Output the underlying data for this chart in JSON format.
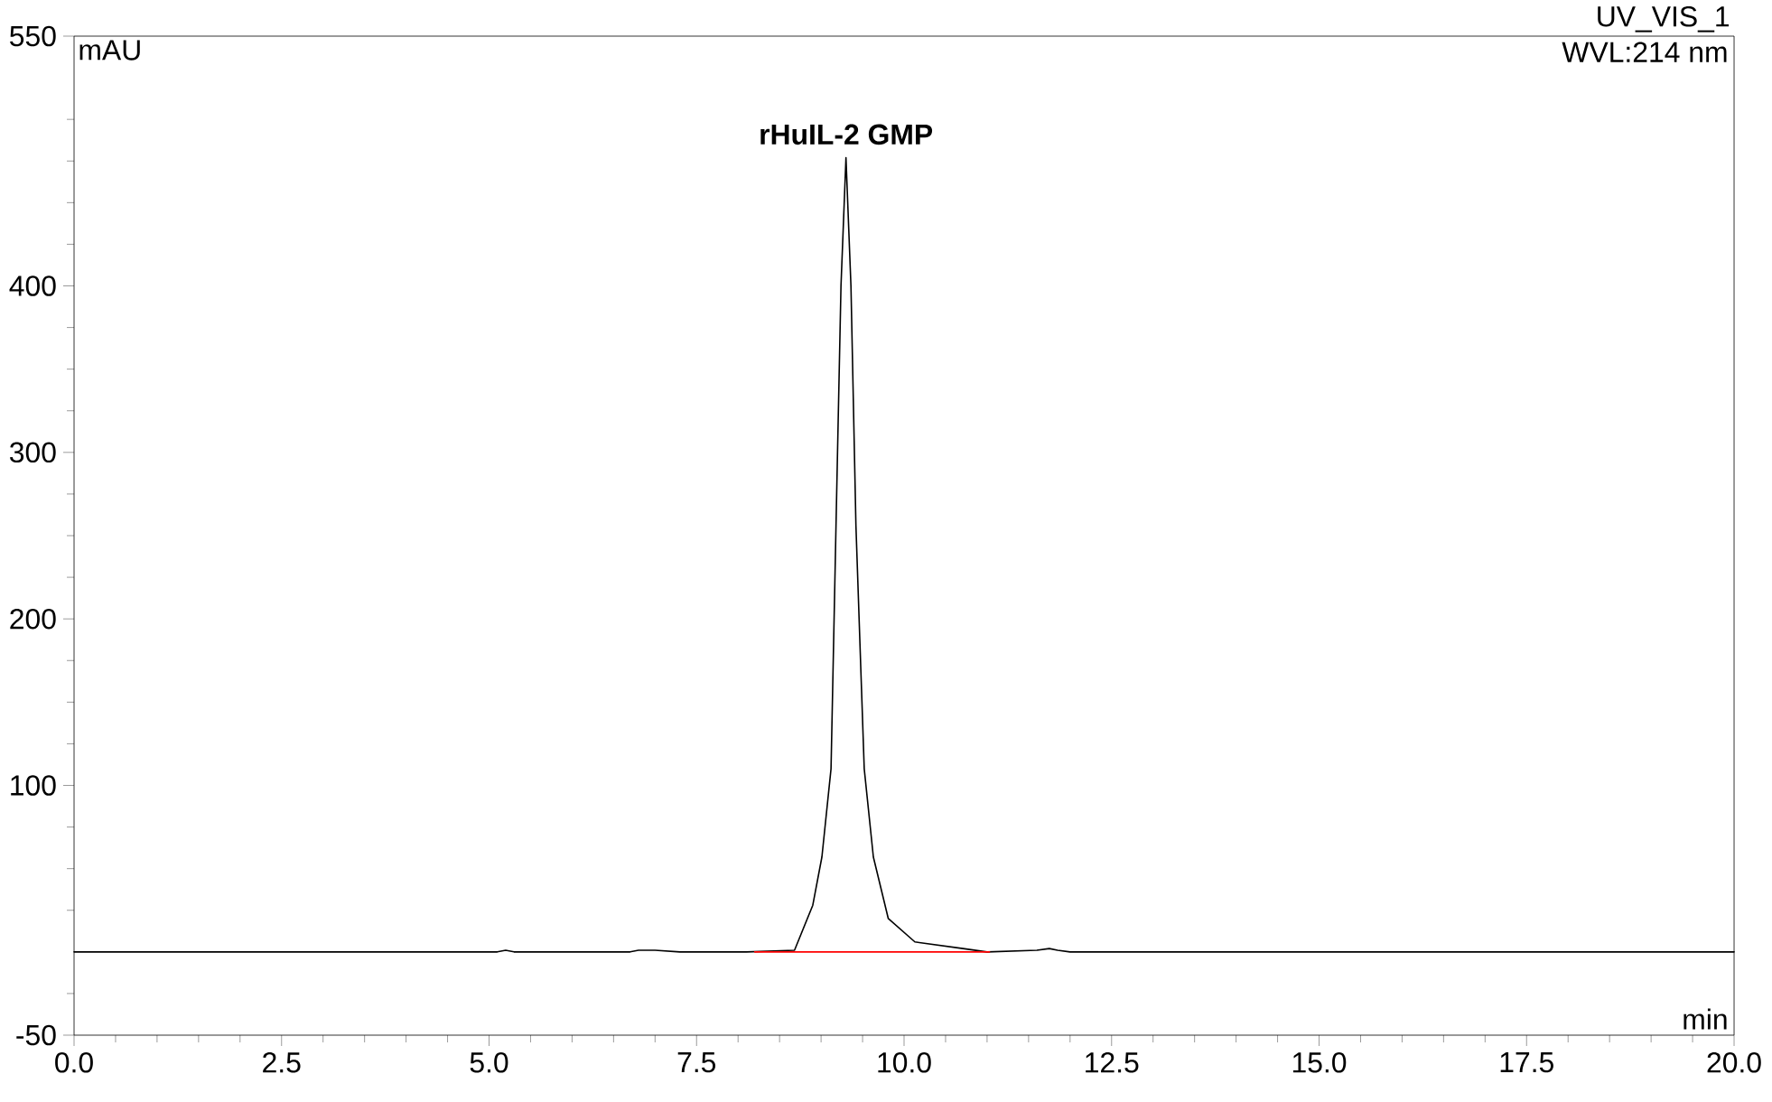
{
  "chart_data": {
    "type": "line",
    "title": "UV_VIS_1",
    "subtitle": "WVL:214 nm",
    "xlabel": "min",
    "ylabel": "mAU",
    "xlim": [
      0,
      20
    ],
    "ylim": [
      -50,
      550
    ],
    "xticks": [
      {
        "value": 0,
        "label": "0.0"
      },
      {
        "value": 2.5,
        "label": "2.5"
      },
      {
        "value": 5,
        "label": "5.0"
      },
      {
        "value": 7.5,
        "label": "7.5"
      },
      {
        "value": 10,
        "label": "10.0"
      },
      {
        "value": 12.5,
        "label": "12.5"
      },
      {
        "value": 15,
        "label": "15.0"
      },
      {
        "value": 17.5,
        "label": "17.5"
      },
      {
        "value": 20,
        "label": "20.0"
      },
      {
        "value": 0.5,
        "label": null
      },
      {
        "value": 1,
        "label": null
      },
      {
        "value": 1.5,
        "label": null
      },
      {
        "value": 2,
        "label": null
      },
      {
        "value": 3,
        "label": null
      },
      {
        "value": 3.5,
        "label": null
      },
      {
        "value": 4,
        "label": null
      },
      {
        "value": 4.5,
        "label": null
      },
      {
        "value": 5.5,
        "label": null
      },
      {
        "value": 6,
        "label": null
      },
      {
        "value": 6.5,
        "label": null
      },
      {
        "value": 7,
        "label": null
      },
      {
        "value": 8,
        "label": null
      },
      {
        "value": 8.5,
        "label": null
      },
      {
        "value": 9,
        "label": null
      },
      {
        "value": 9.5,
        "label": null
      },
      {
        "value": 10.5,
        "label": null
      },
      {
        "value": 11,
        "label": null
      },
      {
        "value": 11.5,
        "label": null
      },
      {
        "value": 12,
        "label": null
      },
      {
        "value": 13,
        "label": null
      },
      {
        "value": 13.5,
        "label": null
      },
      {
        "value": 14,
        "label": null
      },
      {
        "value": 14.5,
        "label": null
      },
      {
        "value": 15.5,
        "label": null
      },
      {
        "value": 16,
        "label": null
      },
      {
        "value": 16.5,
        "label": null
      },
      {
        "value": 17,
        "label": null
      },
      {
        "value": 18,
        "label": null
      },
      {
        "value": 18.5,
        "label": null
      },
      {
        "value": 19,
        "label": null
      },
      {
        "value": 19.5,
        "label": null
      }
    ],
    "yticks": [
      -50,
      100,
      200,
      300,
      400,
      550,
      {
        "value": -25,
        "label": null
      },
      {
        "value": 25,
        "label": null
      },
      {
        "value": 50,
        "label": null
      },
      {
        "value": 75,
        "label": null
      },
      {
        "value": 125,
        "label": null
      },
      {
        "value": 150,
        "label": null
      },
      {
        "value": 175,
        "label": null
      },
      {
        "value": 225,
        "label": null
      },
      {
        "value": 250,
        "label": null
      },
      {
        "value": 275,
        "label": null
      },
      {
        "value": 325,
        "label": null
      },
      {
        "value": 350,
        "label": null
      },
      {
        "value": 375,
        "label": null
      },
      {
        "value": 425,
        "label": null
      },
      {
        "value": 450,
        "label": null
      },
      {
        "value": 475,
        "label": null
      },
      {
        "value": 500,
        "label": null
      }
    ],
    "series": [
      {
        "color": "#000000",
        "x": [
          0,
          5.1,
          5.2,
          5.3,
          6.7,
          6.8,
          7.0,
          7.3,
          8.1,
          8.68,
          8.9,
          9.01,
          9.12,
          9.18,
          9.24,
          9.3,
          9.36,
          9.42,
          9.52,
          9.63,
          9.81,
          10.13,
          10.71,
          11.0,
          11.6,
          11.75,
          11.85,
          12.0,
          20
        ],
        "values": [
          0,
          0,
          1,
          0,
          0,
          1,
          1,
          0,
          0,
          1,
          28,
          57,
          110,
          256,
          400,
          477,
          400,
          256,
          110,
          57,
          20,
          6,
          2,
          0,
          1,
          2,
          1,
          0,
          0
        ]
      },
      {
        "color": "#ff0000",
        "x": [
          8.2,
          11.03
        ],
        "values": [
          0,
          0
        ]
      }
    ],
    "annotations": [
      {
        "text": "rHuIL-2 GMP",
        "x": 9.3,
        "y": 477
      }
    ],
    "grid": false,
    "marker": "none",
    "line_style": "solid"
  }
}
